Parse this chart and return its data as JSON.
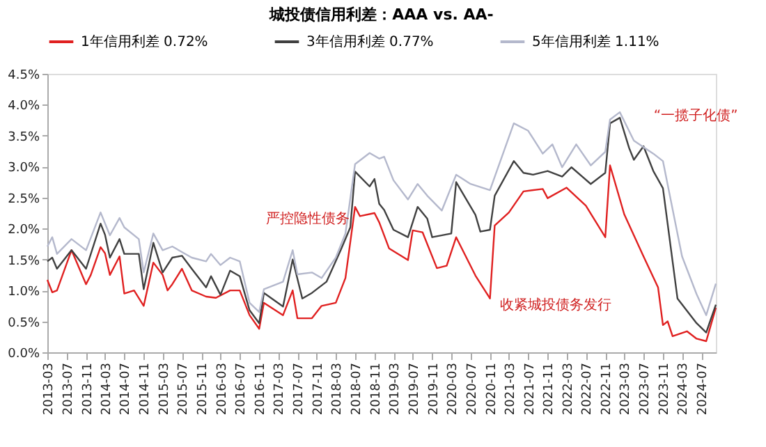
{
  "chart_data": {
    "type": "line",
    "title": "城投债信用利差：AAA vs. AA-",
    "legend": "top",
    "grid": false,
    "line_style": "solid",
    "marker": "none",
    "xlim": [
      "2013-03",
      "2024-10"
    ],
    "xticks": [
      "2013-03",
      "2013-07",
      "2013-11",
      "2014-03",
      "2014-07",
      "2014-11",
      "2015-03",
      "2015-07",
      "2015-11",
      "2016-03",
      "2016-07",
      "2016-11",
      "2017-03",
      "2017-07",
      "2017-11",
      "2018-03",
      "2018-07",
      "2018-11",
      "2019-03",
      "2019-07",
      "2019-11",
      "2020-03",
      "2020-07",
      "2020-11",
      "2021-03",
      "2021-07",
      "2021-11",
      "2022-03",
      "2022-07",
      "2022-11",
      "2023-03",
      "2023-07",
      "2023-11",
      "2024-03",
      "2024-07"
    ],
    "ylim": [
      0,
      4.5
    ],
    "yticks": [
      {
        "value": 0,
        "label": "0.0%"
      },
      {
        "value": 0.5,
        "label": "0.5%"
      },
      {
        "value": 1,
        "label": "1.0%"
      },
      {
        "value": 1.5,
        "label": "1.5%"
      },
      {
        "value": 2,
        "label": "2.0%"
      },
      {
        "value": 2.5,
        "label": "2.5%"
      },
      {
        "value": 3,
        "label": "3.0%"
      },
      {
        "value": 3.5,
        "label": "3.5%"
      },
      {
        "value": 4,
        "label": "4.0%"
      },
      {
        "value": 4.5,
        "label": "4.5%"
      }
    ],
    "annotations": [
      "严控隐性债务",
      "收紧城投债务发行",
      "“一揽子化债”"
    ],
    "series": [
      {
        "name": "1年信用利差  0.72%",
        "color": "#e02020",
        "x": [
          "2013-03",
          "2013-04",
          "2013-05",
          "2013-08",
          "2013-11",
          "2013-12",
          "2014-02",
          "2014-03",
          "2014-04",
          "2014-06",
          "2014-07",
          "2014-09",
          "2014-11",
          "2015-01",
          "2015-03",
          "2015-04",
          "2015-05",
          "2015-07",
          "2015-09",
          "2015-12",
          "2016-02",
          "2016-05",
          "2016-07",
          "2016-09",
          "2016-11",
          "2016-12",
          "2017-04",
          "2017-06",
          "2017-07",
          "2017-10",
          "2017-12",
          "2018-03",
          "2018-05",
          "2018-07",
          "2018-08",
          "2018-11",
          "2018-12",
          "2019-02",
          "2019-06",
          "2019-07",
          "2019-09",
          "2019-12",
          "2020-02",
          "2020-04",
          "2020-08",
          "2020-11",
          "2020-12",
          "2021-03",
          "2021-06",
          "2021-10",
          "2021-11",
          "2022-03",
          "2022-07",
          "2022-11",
          "2022-12",
          "2023-03",
          "2023-07",
          "2023-10",
          "2023-11",
          "2023-12",
          "2024-01",
          "2024-04",
          "2024-06",
          "2024-08",
          "2024-10"
        ],
        "values": [
          1.17,
          0.97,
          1.0,
          1.65,
          1.1,
          1.25,
          1.7,
          1.6,
          1.25,
          1.55,
          0.95,
          1.0,
          0.75,
          1.45,
          1.25,
          1.0,
          1.1,
          1.35,
          1.0,
          0.9,
          0.88,
          1.0,
          1.0,
          0.6,
          0.38,
          0.8,
          0.6,
          1.0,
          0.55,
          0.55,
          0.75,
          0.8,
          1.2,
          2.35,
          2.2,
          2.25,
          2.1,
          1.68,
          1.49,
          1.97,
          1.94,
          1.36,
          1.4,
          1.86,
          1.24,
          0.87,
          2.05,
          2.26,
          2.6,
          2.64,
          2.49,
          2.66,
          2.37,
          1.86,
          3.02,
          2.23,
          1.55,
          1.05,
          0.44,
          0.5,
          0.26,
          0.34,
          0.22,
          0.18,
          0.72
        ]
      },
      {
        "name": "3年信用利差  0.77%",
        "color": "#404040",
        "x": [
          "2013-03",
          "2013-04",
          "2013-05",
          "2013-08",
          "2013-11",
          "2014-02",
          "2014-03",
          "2014-04",
          "2014-06",
          "2014-07",
          "2014-10",
          "2014-11",
          "2015-01",
          "2015-03",
          "2015-05",
          "2015-07",
          "2015-09",
          "2015-12",
          "2016-01",
          "2016-03",
          "2016-05",
          "2016-07",
          "2016-09",
          "2016-11",
          "2016-12",
          "2017-04",
          "2017-06",
          "2017-08",
          "2017-10",
          "2018-01",
          "2018-04",
          "2018-06",
          "2018-07",
          "2018-10",
          "2018-11",
          "2018-12",
          "2019-01",
          "2019-03",
          "2019-06",
          "2019-08",
          "2019-10",
          "2019-11",
          "2020-03",
          "2020-04",
          "2020-08",
          "2020-09",
          "2020-11",
          "2020-12",
          "2021-04",
          "2021-06",
          "2021-08",
          "2021-11",
          "2022-02",
          "2022-04",
          "2022-08",
          "2022-11",
          "2022-12",
          "2023-02",
          "2023-04",
          "2023-05",
          "2023-07",
          "2023-09",
          "2023-11",
          "2024-02",
          "2024-06",
          "2024-08",
          "2024-10"
        ],
        "values": [
          1.47,
          1.53,
          1.35,
          1.65,
          1.35,
          2.08,
          1.9,
          1.53,
          1.83,
          1.59,
          1.59,
          1.02,
          1.77,
          1.29,
          1.53,
          1.56,
          1.35,
          1.05,
          1.23,
          0.93,
          1.32,
          1.23,
          0.68,
          0.47,
          0.96,
          0.74,
          1.5,
          0.87,
          0.96,
          1.14,
          1.65,
          2.02,
          2.92,
          2.68,
          2.8,
          2.4,
          2.3,
          1.98,
          1.86,
          2.35,
          2.16,
          1.86,
          1.92,
          2.75,
          2.22,
          1.95,
          1.98,
          2.53,
          3.09,
          2.9,
          2.87,
          2.93,
          2.84,
          2.99,
          2.72,
          2.9,
          3.7,
          3.79,
          3.3,
          3.11,
          3.33,
          2.93,
          2.65,
          0.87,
          0.47,
          0.32,
          0.77
        ]
      },
      {
        "name": "5年信用利差  1.11%",
        "color": "#b4b8cc",
        "x": [
          "2013-03",
          "2013-04",
          "2013-05",
          "2013-08",
          "2013-11",
          "2014-02",
          "2014-04",
          "2014-06",
          "2014-07",
          "2014-10",
          "2014-11",
          "2015-01",
          "2015-03",
          "2015-05",
          "2015-07",
          "2015-09",
          "2015-12",
          "2016-01",
          "2016-03",
          "2016-05",
          "2016-07",
          "2016-09",
          "2016-11",
          "2016-12",
          "2017-04",
          "2017-06",
          "2017-07",
          "2017-10",
          "2017-12",
          "2018-03",
          "2018-05",
          "2018-07",
          "2018-10",
          "2018-12",
          "2019-01",
          "2019-03",
          "2019-06",
          "2019-08",
          "2019-10",
          "2020-01",
          "2020-04",
          "2020-07",
          "2020-11",
          "2021-04",
          "2021-07",
          "2021-10",
          "2021-12",
          "2022-02",
          "2022-05",
          "2022-08",
          "2022-11",
          "2022-12",
          "2023-02",
          "2023-05",
          "2023-09",
          "2023-11",
          "2024-03",
          "2024-06",
          "2024-08",
          "2024-10"
        ],
        "values": [
          1.71,
          1.86,
          1.59,
          1.83,
          1.65,
          2.26,
          1.89,
          2.17,
          2.02,
          1.83,
          1.29,
          1.92,
          1.65,
          1.71,
          1.62,
          1.53,
          1.47,
          1.59,
          1.41,
          1.53,
          1.47,
          0.8,
          0.65,
          1.02,
          1.14,
          1.65,
          1.26,
          1.29,
          1.2,
          1.53,
          1.92,
          3.04,
          3.22,
          3.13,
          3.16,
          2.78,
          2.47,
          2.72,
          2.53,
          2.29,
          2.87,
          2.72,
          2.62,
          3.7,
          3.58,
          3.21,
          3.36,
          2.99,
          3.36,
          3.02,
          3.24,
          3.76,
          3.88,
          3.42,
          3.21,
          3.09,
          1.55,
          0.94,
          0.6,
          1.11
        ]
      }
    ]
  }
}
